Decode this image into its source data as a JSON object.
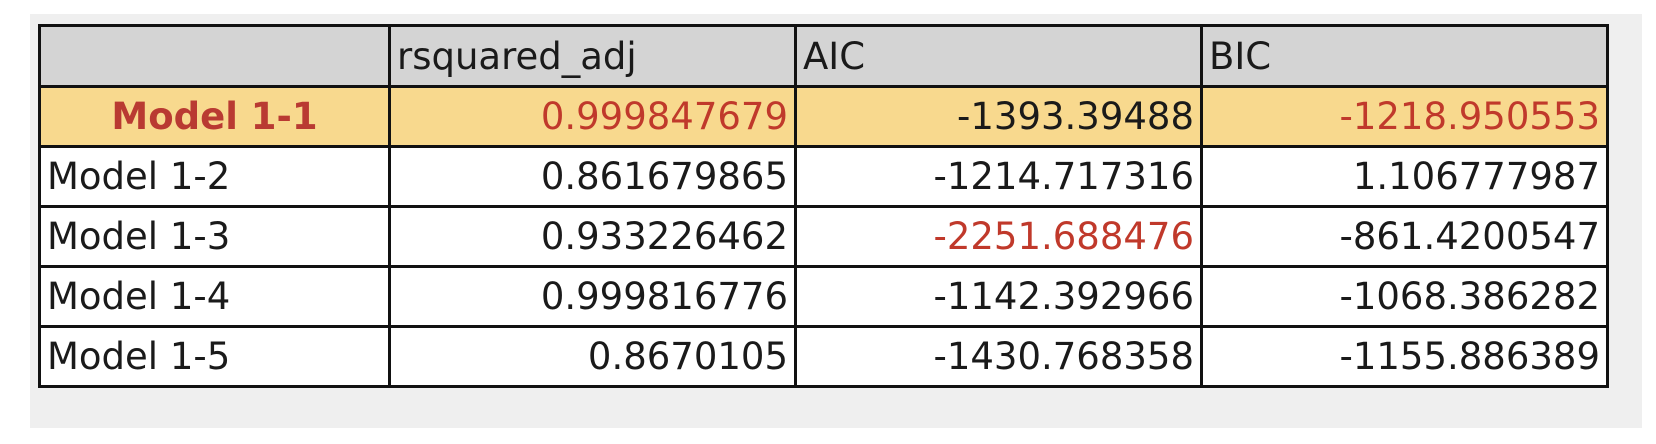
{
  "table": {
    "headers": [
      "",
      "rsquared_adj",
      "AIC",
      "BIC"
    ],
    "rows": [
      {
        "model": "Model 1-1",
        "rsquared_adj": "0.999847679",
        "aic": "-1393.39488",
        "bic": "-1218.950553",
        "highlighted": true
      },
      {
        "model": "Model 1-2",
        "rsquared_adj": "0.861679865",
        "aic": "-1214.717316",
        "bic": "1.106777987",
        "highlighted": false
      },
      {
        "model": "Model 1-3",
        "rsquared_adj": "0.933226462",
        "aic": "-2251.688476",
        "bic": "-861.4200547",
        "highlighted": false
      },
      {
        "model": "Model 1-4",
        "rsquared_adj": "0.999816776",
        "aic": "-1142.392966",
        "bic": "-1068.386282",
        "highlighted": false
      },
      {
        "model": "Model 1-5",
        "rsquared_adj": "0.8670105",
        "aic": "-1430.768358",
        "bic": "-1155.886389",
        "highlighted": false
      }
    ]
  },
  "colors": {
    "highlight_row_bg": "#f8d98e",
    "best_value_text": "#c0392b",
    "header_bg": "#d4d4d4"
  }
}
